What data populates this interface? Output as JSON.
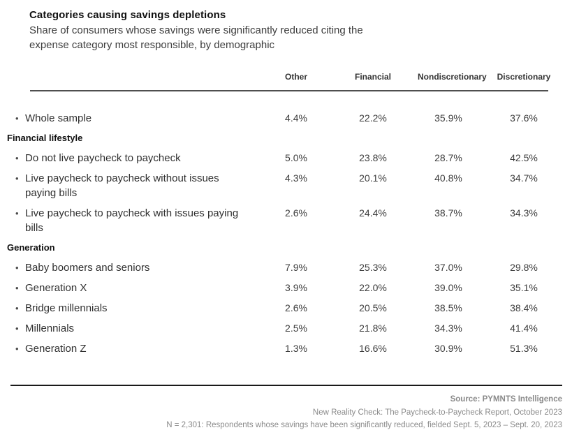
{
  "page": {
    "title": "Categories causing savings depletions",
    "subtitle": "Share of consumers whose savings were significantly reduced citing the expense category most responsible, by demographic"
  },
  "table": {
    "columns": [
      "Other",
      "Financial",
      "Nondiscretionary",
      "Discretionary"
    ],
    "sections": [
      {
        "header": "",
        "rows": [
          {
            "label": "Whole sample",
            "values": [
              "4.4%",
              "22.2%",
              "35.9%",
              "37.6%"
            ]
          }
        ]
      },
      {
        "header": "Financial lifestyle",
        "rows": [
          {
            "label": "Do not live paycheck to paycheck",
            "values": [
              "5.0%",
              "23.8%",
              "28.7%",
              "42.5%"
            ]
          },
          {
            "label": "Live paycheck to paycheck without issues paying bills",
            "values": [
              "4.3%",
              "20.1%",
              "40.8%",
              "34.7%"
            ]
          },
          {
            "label": "Live paycheck to paycheck with issues paying bills",
            "values": [
              "2.6%",
              "24.4%",
              "38.7%",
              "34.3%"
            ]
          }
        ]
      },
      {
        "header": "Generation",
        "rows": [
          {
            "label": "Baby boomers and seniors",
            "values": [
              "7.9%",
              "25.3%",
              "37.0%",
              "29.8%"
            ]
          },
          {
            "label": "Generation X",
            "values": [
              "3.9%",
              "22.0%",
              "39.0%",
              "35.1%"
            ]
          },
          {
            "label": "Bridge millennials",
            "values": [
              "2.6%",
              "20.5%",
              "38.5%",
              "38.4%"
            ]
          },
          {
            "label": "Millennials",
            "values": [
              "2.5%",
              "21.8%",
              "34.3%",
              "41.4%"
            ]
          },
          {
            "label": "Generation Z",
            "values": [
              "1.3%",
              "16.6%",
              "30.9%",
              "51.3%"
            ]
          }
        ]
      }
    ]
  },
  "footer": {
    "source": "Source: PYMNTS Intelligence",
    "report": "New Reality Check: The Paycheck-to-Paycheck Report, October 2023",
    "note": "N = 2,301: Respondents whose savings have been significantly reduced, fielded Sept. 5, 2023 – Sept. 20, 2023"
  },
  "colors": {
    "title_text": "#111111",
    "body_text": "#303030",
    "value_text": "#3d3d3d",
    "header_rule": "#4f4f4f",
    "bottom_rule": "#1a1a1a",
    "footer_text": "#8a8a8a",
    "background": "#ffffff"
  },
  "chart_data": {
    "type": "table",
    "title": "Categories causing savings depletions",
    "subtitle": "Share of consumers whose savings were significantly reduced citing the expense category most responsible, by demographic",
    "unit": "%",
    "columns": [
      "Other",
      "Financial",
      "Nondiscretionary",
      "Discretionary"
    ],
    "groups": [
      {
        "group": "",
        "rows": [
          {
            "label": "Whole sample",
            "values": [
              4.4,
              22.2,
              35.9,
              37.6
            ]
          }
        ]
      },
      {
        "group": "Financial lifestyle",
        "rows": [
          {
            "label": "Do not live paycheck to paycheck",
            "values": [
              5.0,
              23.8,
              28.7,
              42.5
            ]
          },
          {
            "label": "Live paycheck to paycheck without issues paying bills",
            "values": [
              4.3,
              20.1,
              40.8,
              34.7
            ]
          },
          {
            "label": "Live paycheck to paycheck with issues paying bills",
            "values": [
              2.6,
              24.4,
              38.7,
              34.3
            ]
          }
        ]
      },
      {
        "group": "Generation",
        "rows": [
          {
            "label": "Baby boomers and seniors",
            "values": [
              7.9,
              25.3,
              37.0,
              29.8
            ]
          },
          {
            "label": "Generation X",
            "values": [
              3.9,
              22.0,
              39.0,
              35.1
            ]
          },
          {
            "label": "Bridge millennials",
            "values": [
              2.6,
              20.5,
              38.5,
              38.4
            ]
          },
          {
            "label": "Millennials",
            "values": [
              2.5,
              21.8,
              34.3,
              41.4
            ]
          },
          {
            "label": "Generation Z",
            "values": [
              1.3,
              16.6,
              30.9,
              51.3
            ]
          }
        ]
      }
    ],
    "source": "Source: PYMNTS Intelligence — New Reality Check: The Paycheck-to-Paycheck Report, October 2023 — N = 2,301: Respondents whose savings have been significantly reduced, fielded Sept. 5, 2023 – Sept. 20, 2023"
  }
}
